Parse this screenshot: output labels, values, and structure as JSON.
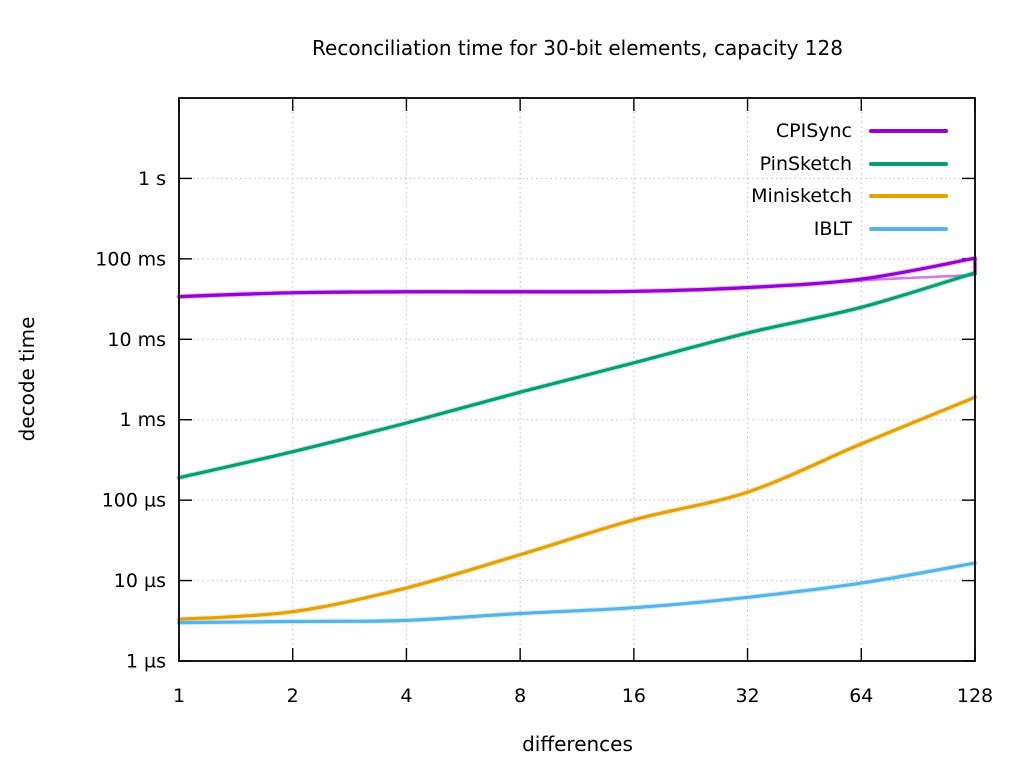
{
  "chart_data": {
    "type": "line",
    "title": "Reconciliation time for 30-bit elements, capacity 128",
    "xlabel": "differences",
    "ylabel": "decode time",
    "x_scale": "log2",
    "y_scale": "log10",
    "xlim": [
      1,
      128
    ],
    "ylim_us": [
      1,
      10000000
    ],
    "grid": true,
    "legend_position": "top-right-inside",
    "x_ticks": [
      {
        "label": "1",
        "value": 1
      },
      {
        "label": "2",
        "value": 2
      },
      {
        "label": "4",
        "value": 4
      },
      {
        "label": "8",
        "value": 8
      },
      {
        "label": "16",
        "value": 16
      },
      {
        "label": "32",
        "value": 32
      },
      {
        "label": "64",
        "value": 64
      },
      {
        "label": "128",
        "value": 128
      }
    ],
    "y_ticks": [
      {
        "label": "1 µs",
        "us": 1
      },
      {
        "label": "10 µs",
        "us": 10
      },
      {
        "label": "100 µs",
        "us": 100
      },
      {
        "label": "1 ms",
        "us": 1000
      },
      {
        "label": "10 ms",
        "us": 10000
      },
      {
        "label": "100 ms",
        "us": 100000
      },
      {
        "label": "1 s",
        "us": 1000000
      }
    ],
    "x": [
      1,
      2,
      4,
      8,
      16,
      32,
      64,
      128
    ],
    "series": [
      {
        "name": "CPISync",
        "color": "#9400d3",
        "decode_time_us": [
          34000,
          38000,
          39000,
          39000,
          39500,
          44000,
          56000,
          102000
        ],
        "secondary_run_us": [
          33500,
          37500,
          38500,
          38500,
          39000,
          43500,
          54000,
          63000
        ]
      },
      {
        "name": "PinSketch",
        "color": "#009e73",
        "decode_time_us": [
          190,
          400,
          910,
          2200,
          5100,
          12000,
          25000,
          67000
        ]
      },
      {
        "name": "Minisketch",
        "color": "#e69f00",
        "decode_time_us": [
          3.3,
          4.1,
          8.1,
          21,
          57,
          126,
          500,
          1900
        ]
      },
      {
        "name": "IBLT",
        "color": "#56b4e9",
        "decode_time_us": [
          3.0,
          3.1,
          3.2,
          3.9,
          4.6,
          6.2,
          9.3,
          16.5
        ]
      }
    ]
  }
}
